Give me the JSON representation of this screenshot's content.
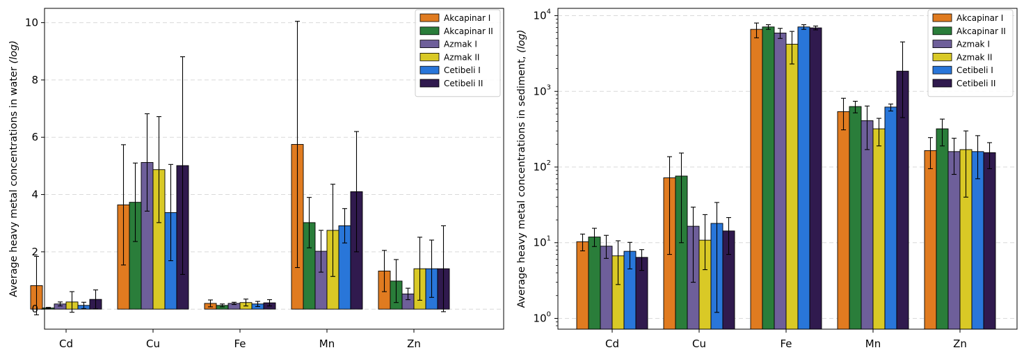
{
  "chart_data": [
    {
      "type": "bar",
      "scale": "linear",
      "ylabel": "Average heavy metal concentrations in water",
      "ylabel_suffix": "(log)",
      "categories": [
        "Cd",
        "Cu",
        "Fe",
        "Mn",
        "Zn"
      ],
      "ylim": [
        -0.7,
        10.5
      ],
      "yticks": [
        0,
        2,
        4,
        6,
        8,
        10
      ],
      "ytick_labels": [
        "0",
        "2",
        "4",
        "6",
        "8",
        "10"
      ],
      "grid": true,
      "legend_position": "top-right",
      "series": [
        {
          "name": "Akcapinar I",
          "color": "#e07b20",
          "values": [
            0.82,
            3.64,
            0.2,
            5.75,
            1.33
          ],
          "err": [
            1.02,
            2.1,
            0.12,
            4.3,
            0.72
          ]
        },
        {
          "name": "Akcapinar II",
          "color": "#2a7d3a",
          "values": [
            0.04,
            3.73,
            0.13,
            3.02,
            0.98
          ],
          "err": [
            0.02,
            1.37,
            0.05,
            0.88,
            0.75
          ]
        },
        {
          "name": "Azmak I",
          "color": "#6e5f9a",
          "values": [
            0.18,
            5.12,
            0.2,
            2.02,
            0.53
          ],
          "err": [
            0.07,
            1.7,
            0.04,
            0.73,
            0.2
          ]
        },
        {
          "name": "Azmak II",
          "color": "#d9c926",
          "values": [
            0.25,
            4.87,
            0.23,
            2.75,
            1.41
          ],
          "err": [
            0.36,
            1.85,
            0.12,
            1.61,
            1.1
          ]
        },
        {
          "name": "Cetibeli I",
          "color": "#2976d9",
          "values": [
            0.13,
            3.37,
            0.18,
            2.91,
            1.41
          ],
          "err": [
            0.11,
            1.68,
            0.09,
            0.6,
            1.0
          ]
        },
        {
          "name": "Cetibeli II",
          "color": "#301a4e",
          "values": [
            0.34,
            5.01,
            0.22,
            4.1,
            1.41
          ],
          "err": [
            0.33,
            3.8,
            0.11,
            2.1,
            1.5
          ]
        }
      ]
    },
    {
      "type": "bar",
      "scale": "log",
      "ylabel": "Average heavy metal concentrations in sediment,",
      "ylabel_suffix": "(log)",
      "categories": [
        "Cd",
        "Cu",
        "Fe",
        "Mn",
        "Zn"
      ],
      "ylim": [
        0.72,
        12500
      ],
      "yticks": [
        1,
        10,
        100,
        1000,
        10000
      ],
      "ytick_base": [
        "10",
        "10",
        "10",
        "10",
        "10"
      ],
      "ytick_exp": [
        "0",
        "1",
        "2",
        "3",
        "4"
      ],
      "grid": true,
      "legend_position": "top-right",
      "series": [
        {
          "name": "Akcapinar I",
          "color": "#e07b20",
          "values": [
            10.3,
            72,
            6600,
            540,
            165
          ],
          "err_low": [
            2.5,
            65,
            1500,
            230,
            70
          ],
          "err_high": [
            2.7,
            65,
            1400,
            270,
            80
          ]
        },
        {
          "name": "Akcapinar II",
          "color": "#2a7d3a",
          "values": [
            11.9,
            76,
            7100,
            630,
            320
          ],
          "err_low": [
            3,
            66,
            500,
            110,
            130
          ],
          "err_high": [
            3.6,
            77,
            500,
            110,
            110
          ]
        },
        {
          "name": "Azmak I",
          "color": "#6e5f9a",
          "values": [
            9.0,
            16.5,
            5900,
            410,
            160
          ],
          "err_low": [
            2.8,
            13.5,
            900,
            240,
            80
          ],
          "err_high": [
            3.5,
            13,
            900,
            230,
            80
          ]
        },
        {
          "name": "Azmak II",
          "color": "#d9c926",
          "values": [
            6.7,
            10.8,
            4200,
            320,
            170
          ],
          "err_low": [
            3.9,
            6.4,
            1900,
            130,
            130
          ],
          "err_high": [
            3.9,
            12.7,
            2000,
            120,
            130
          ]
        },
        {
          "name": "Cetibeli I",
          "color": "#2976d9",
          "values": [
            7.7,
            18,
            7100,
            620,
            160
          ],
          "err_low": [
            3.2,
            16.8,
            500,
            70,
            90
          ],
          "err_high": [
            2.4,
            16,
            500,
            60,
            100
          ]
        },
        {
          "name": "Cetibeli II",
          "color": "#301a4e",
          "values": [
            6.4,
            14.3,
            6900,
            1850,
            155
          ],
          "err_low": [
            2.1,
            7.3,
            400,
            1400,
            60
          ],
          "err_high": [
            1.7,
            7.2,
            400,
            2650,
            55
          ]
        }
      ]
    }
  ]
}
